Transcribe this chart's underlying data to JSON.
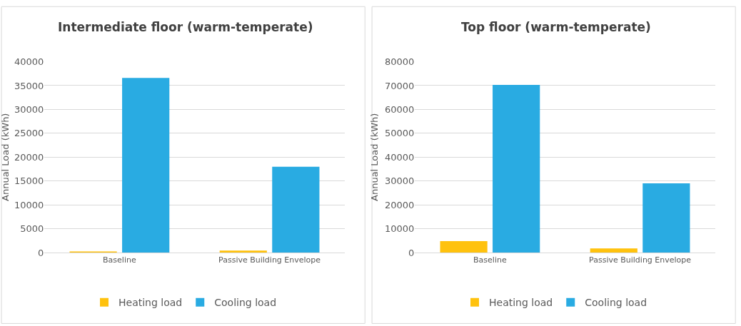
{
  "chart_data": [
    {
      "type": "bar",
      "title": "Intermediate floor (warm-temperate)",
      "ylabel": "Annual Load (kWh)",
      "categories": [
        "Baseline",
        "Passive Building Envelope"
      ],
      "series": [
        {
          "name": "Heating load",
          "color": "#ffc20e",
          "values": [
            200,
            400
          ]
        },
        {
          "name": "Cooling load",
          "color": "#29abe2",
          "values": [
            36600,
            18000
          ]
        }
      ],
      "ylim": [
        0,
        40000
      ],
      "yticks": [
        0,
        5000,
        10000,
        15000,
        20000,
        25000,
        30000,
        35000,
        40000
      ],
      "grid": "y",
      "legend": "bottom"
    },
    {
      "type": "bar",
      "title": "Top floor (warm-temperate)",
      "ylabel": "Annual Load (kWh)",
      "categories": [
        "Baseline",
        "Passive Building Envelope"
      ],
      "series": [
        {
          "name": "Heating load",
          "color": "#ffc20e",
          "values": [
            4800,
            1700
          ]
        },
        {
          "name": "Cooling load",
          "color": "#29abe2",
          "values": [
            70300,
            29000
          ]
        }
      ],
      "ylim": [
        0,
        80000
      ],
      "yticks": [
        0,
        10000,
        20000,
        30000,
        40000,
        50000,
        60000,
        70000,
        80000
      ],
      "grid": "y",
      "legend": "bottom"
    }
  ]
}
